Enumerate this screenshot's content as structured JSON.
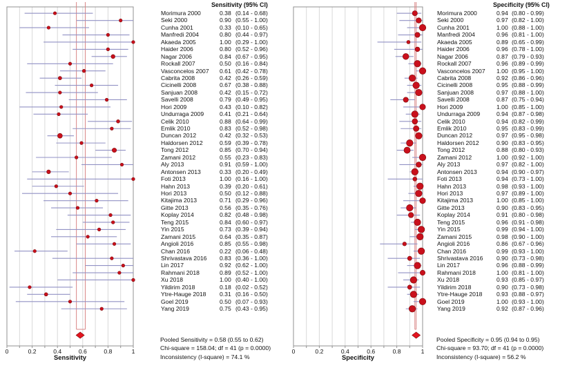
{
  "chart_data": {
    "type": "scatter",
    "variant": "paired-forest-plot",
    "x_range": [
      0,
      1
    ],
    "x_tick_labels": [
      "0",
      "0.2",
      "0.4",
      "0.6",
      "0.8",
      "1"
    ],
    "grid_step": 0.1,
    "panels": [
      {
        "id": "sensitivity",
        "header": "Sensitivity (95% CI)",
        "xlabel": "Sensitivity",
        "pooled": {
          "estimate": 0.58,
          "ci_low": 0.55,
          "ci_high": 0.62
        },
        "pooled_label": "Pooled Sensitivity = 0.58 (0.55 to 0.62)",
        "chi_square_label": "Chi-square = 158.04; df = 41 (p = 0.0000)",
        "inconsistency_label": "Inconsistency (I-square) = 74.1 %"
      },
      {
        "id": "specificity",
        "header": "Specificity (95% CI)",
        "xlabel": "Specificity",
        "pooled": {
          "estimate": 0.95,
          "ci_low": 0.94,
          "ci_high": 0.95
        },
        "pooled_label": "Pooled Specificity = 0.95 (0.94 to 0.95)",
        "chi_square_label": "Chi-square = 93.70; df = 41 (p = 0.0000)",
        "inconsistency_label": "Inconsistency (I-square) = 56.2 %"
      }
    ],
    "studies": [
      {
        "name": "Morimura 2000",
        "sensitivity": {
          "est": 0.38,
          "lo": 0.14,
          "hi": 0.68
        },
        "specificity": {
          "est": 0.94,
          "lo": 0.8,
          "hi": 0.99
        }
      },
      {
        "name": "Seki 2000",
        "sensitivity": {
          "est": 0.9,
          "lo": 0.55,
          "hi": 1.0
        },
        "specificity": {
          "est": 0.97,
          "lo": 0.82,
          "hi": 1.0
        }
      },
      {
        "name": "Cunha 2001",
        "sensitivity": {
          "est": 0.33,
          "lo": 0.1,
          "hi": 0.65
        },
        "specificity": {
          "est": 1.0,
          "lo": 0.88,
          "hi": 1.0
        }
      },
      {
        "name": "Manfredi 2004",
        "sensitivity": {
          "est": 0.8,
          "lo": 0.44,
          "hi": 0.97
        },
        "specificity": {
          "est": 0.96,
          "lo": 0.81,
          "hi": 1.0
        }
      },
      {
        "name": "Akaeda 2005",
        "sensitivity": {
          "est": 1.0,
          "lo": 0.29,
          "hi": 1.0
        },
        "specificity": {
          "est": 0.89,
          "lo": 0.65,
          "hi": 0.99
        }
      },
      {
        "name": "Haider 2006",
        "sensitivity": {
          "est": 0.8,
          "lo": 0.52,
          "hi": 0.96
        },
        "specificity": {
          "est": 0.96,
          "lo": 0.78,
          "hi": 1.0
        }
      },
      {
        "name": "Nagar 2006",
        "sensitivity": {
          "est": 0.84,
          "lo": 0.67,
          "hi": 0.95
        },
        "specificity": {
          "est": 0.87,
          "lo": 0.79,
          "hi": 0.93
        }
      },
      {
        "name": "Rockall 2007",
        "sensitivity": {
          "est": 0.5,
          "lo": 0.16,
          "hi": 0.84
        },
        "specificity": {
          "est": 0.96,
          "lo": 0.89,
          "hi": 0.99
        }
      },
      {
        "name": "Vasconcelos 2007",
        "sensitivity": {
          "est": 0.61,
          "lo": 0.42,
          "hi": 0.78
        },
        "specificity": {
          "est": 1.0,
          "lo": 0.95,
          "hi": 1.0
        }
      },
      {
        "name": "Cabrita 2008",
        "sensitivity": {
          "est": 0.42,
          "lo": 0.26,
          "hi": 0.59
        },
        "specificity": {
          "est": 0.92,
          "lo": 0.86,
          "hi": 0.96
        }
      },
      {
        "name": "Cicinelli 2008",
        "sensitivity": {
          "est": 0.67,
          "lo": 0.38,
          "hi": 0.88
        },
        "specificity": {
          "est": 0.95,
          "lo": 0.88,
          "hi": 0.99
        }
      },
      {
        "name": "Sanjuan 2008",
        "sensitivity": {
          "est": 0.42,
          "lo": 0.15,
          "hi": 0.72
        },
        "specificity": {
          "est": 0.97,
          "lo": 0.88,
          "hi": 1.0
        }
      },
      {
        "name": "Savelli 2008",
        "sensitivity": {
          "est": 0.79,
          "lo": 0.49,
          "hi": 0.95
        },
        "specificity": {
          "est": 0.87,
          "lo": 0.75,
          "hi": 0.94
        }
      },
      {
        "name": "Hori 2009",
        "sensitivity": {
          "est": 0.43,
          "lo": 0.1,
          "hi": 0.82
        },
        "specificity": {
          "est": 1.0,
          "lo": 0.85,
          "hi": 1.0
        }
      },
      {
        "name": "Undurraga 2009",
        "sensitivity": {
          "est": 0.41,
          "lo": 0.21,
          "hi": 0.64
        },
        "specificity": {
          "est": 0.94,
          "lo": 0.87,
          "hi": 0.98
        }
      },
      {
        "name": "Celik 2010",
        "sensitivity": {
          "est": 0.88,
          "lo": 0.64,
          "hi": 0.99
        },
        "specificity": {
          "est": 0.94,
          "lo": 0.82,
          "hi": 0.99
        }
      },
      {
        "name": "Emlik 2010",
        "sensitivity": {
          "est": 0.83,
          "lo": 0.52,
          "hi": 0.98
        },
        "specificity": {
          "est": 0.95,
          "lo": 0.83,
          "hi": 0.99
        }
      },
      {
        "name": "Duncan 2012",
        "sensitivity": {
          "est": 0.42,
          "lo": 0.32,
          "hi": 0.53
        },
        "specificity": {
          "est": 0.97,
          "lo": 0.95,
          "hi": 0.98
        }
      },
      {
        "name": "Haldorsen 2012",
        "sensitivity": {
          "est": 0.59,
          "lo": 0.39,
          "hi": 0.78
        },
        "specificity": {
          "est": 0.9,
          "lo": 0.83,
          "hi": 0.95
        }
      },
      {
        "name": "Tong 2012",
        "sensitivity": {
          "est": 0.85,
          "lo": 0.7,
          "hi": 0.94
        },
        "specificity": {
          "est": 0.88,
          "lo": 0.8,
          "hi": 0.93
        }
      },
      {
        "name": "Zamani 2012",
        "sensitivity": {
          "est": 0.55,
          "lo": 0.23,
          "hi": 0.83
        },
        "specificity": {
          "est": 1.0,
          "lo": 0.92,
          "hi": 1.0
        }
      },
      {
        "name": "Aly 2013",
        "sensitivity": {
          "est": 0.91,
          "lo": 0.59,
          "hi": 1.0
        },
        "specificity": {
          "est": 0.97,
          "lo": 0.82,
          "hi": 1.0
        }
      },
      {
        "name": "Antonsen 2013",
        "sensitivity": {
          "est": 0.33,
          "lo": 0.2,
          "hi": 0.49
        },
        "specificity": {
          "est": 0.94,
          "lo": 0.9,
          "hi": 0.97
        }
      },
      {
        "name": "Foti 2013",
        "sensitivity": {
          "est": 1.0,
          "lo": 0.16,
          "hi": 1.0
        },
        "specificity": {
          "est": 0.94,
          "lo": 0.73,
          "hi": 1.0
        }
      },
      {
        "name": "Hahn 2013",
        "sensitivity": {
          "est": 0.39,
          "lo": 0.2,
          "hi": 0.61
        },
        "specificity": {
          "est": 0.98,
          "lo": 0.93,
          "hi": 1.0
        }
      },
      {
        "name": "Hori 2013",
        "sensitivity": {
          "est": 0.5,
          "lo": 0.12,
          "hi": 0.88
        },
        "specificity": {
          "est": 0.97,
          "lo": 0.89,
          "hi": 1.0
        }
      },
      {
        "name": "Kitajima 2013",
        "sensitivity": {
          "est": 0.71,
          "lo": 0.29,
          "hi": 0.96
        },
        "specificity": {
          "est": 1.0,
          "lo": 0.85,
          "hi": 1.0
        }
      },
      {
        "name": "Gitte 2013",
        "sensitivity": {
          "est": 0.56,
          "lo": 0.35,
          "hi": 0.76
        },
        "specificity": {
          "est": 0.9,
          "lo": 0.83,
          "hi": 0.95
        }
      },
      {
        "name": "Koplay 2014",
        "sensitivity": {
          "est": 0.82,
          "lo": 0.48,
          "hi": 0.98
        },
        "specificity": {
          "est": 0.91,
          "lo": 0.8,
          "hi": 0.98
        }
      },
      {
        "name": "Teng 2015",
        "sensitivity": {
          "est": 0.84,
          "lo": 0.6,
          "hi": 0.97
        },
        "specificity": {
          "est": 0.96,
          "lo": 0.91,
          "hi": 0.98
        }
      },
      {
        "name": "Yin 2015",
        "sensitivity": {
          "est": 0.73,
          "lo": 0.39,
          "hi": 0.94
        },
        "specificity": {
          "est": 0.99,
          "lo": 0.94,
          "hi": 1.0
        }
      },
      {
        "name": "Zamani 2015",
        "sensitivity": {
          "est": 0.64,
          "lo": 0.35,
          "hi": 0.87
        },
        "specificity": {
          "est": 0.98,
          "lo": 0.9,
          "hi": 1.0
        }
      },
      {
        "name": "Angioli 2016",
        "sensitivity": {
          "est": 0.85,
          "lo": 0.55,
          "hi": 0.98
        },
        "specificity": {
          "est": 0.86,
          "lo": 0.67,
          "hi": 0.96
        }
      },
      {
        "name": "Chan 2016",
        "sensitivity": {
          "est": 0.22,
          "lo": 0.06,
          "hi": 0.48
        },
        "specificity": {
          "est": 0.99,
          "lo": 0.93,
          "hi": 1.0
        }
      },
      {
        "name": "Shrivastava 2016",
        "sensitivity": {
          "est": 0.83,
          "lo": 0.36,
          "hi": 1.0
        },
        "specificity": {
          "est": 0.9,
          "lo": 0.73,
          "hi": 0.98
        }
      },
      {
        "name": "Lin 2017",
        "sensitivity": {
          "est": 0.92,
          "lo": 0.62,
          "hi": 1.0
        },
        "specificity": {
          "est": 0.96,
          "lo": 0.88,
          "hi": 0.99
        }
      },
      {
        "name": "Rahmani 2018",
        "sensitivity": {
          "est": 0.89,
          "lo": 0.52,
          "hi": 1.0
        },
        "specificity": {
          "est": 1.0,
          "lo": 0.81,
          "hi": 1.0
        }
      },
      {
        "name": "Xu 2018",
        "sensitivity": {
          "est": 1.0,
          "lo": 0.4,
          "hi": 1.0
        },
        "specificity": {
          "est": 0.93,
          "lo": 0.85,
          "hi": 0.97
        }
      },
      {
        "name": "Yildirim 2018",
        "sensitivity": {
          "est": 0.18,
          "lo": 0.02,
          "hi": 0.52
        },
        "specificity": {
          "est": 0.9,
          "lo": 0.73,
          "hi": 0.98
        }
      },
      {
        "name": "Ytre-Hauge 2018",
        "sensitivity": {
          "est": 0.31,
          "lo": 0.16,
          "hi": 0.5
        },
        "specificity": {
          "est": 0.93,
          "lo": 0.88,
          "hi": 0.97
        }
      },
      {
        "name": "Goel 2019",
        "sensitivity": {
          "est": 0.5,
          "lo": 0.07,
          "hi": 0.93
        },
        "specificity": {
          "est": 1.0,
          "lo": 0.93,
          "hi": 1.0
        }
      },
      {
        "name": "Yang 2019",
        "sensitivity": {
          "est": 0.75,
          "lo": 0.43,
          "hi": 0.95
        },
        "specificity": {
          "est": 0.92,
          "lo": 0.87,
          "hi": 0.96
        }
      }
    ]
  },
  "colors": {
    "point": "#c9101c",
    "point_edge": "#7d0a0a",
    "ci_line": "#9191c4",
    "pooled_line": "#d98585",
    "diamond": "#e3141f",
    "grid": "#d9d9d9",
    "plot_border": "#909090",
    "text": "#111111"
  }
}
